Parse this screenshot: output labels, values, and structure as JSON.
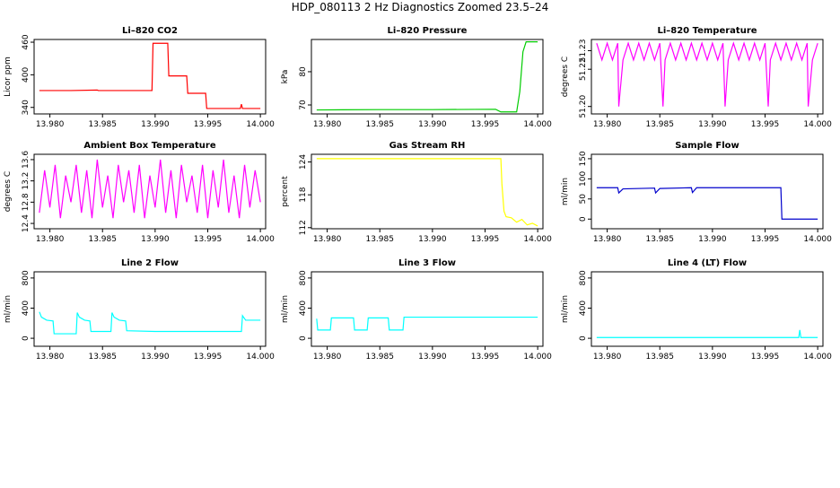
{
  "title": "HDP_080113  2 Hz Diagnostics Zoomed 23.5–24",
  "chart_data": [
    {
      "type": "line",
      "title": "Li–820 CO2",
      "ylabel": "Licor ppm",
      "xlim": [
        13.9785,
        14.0005
      ],
      "ylim": [
        328,
        465
      ],
      "xticks": [
        {
          "value": 13.98,
          "label": "13.980"
        },
        {
          "value": 13.985,
          "label": "13.985"
        },
        {
          "value": 13.99,
          "label": "13.990"
        },
        {
          "value": 13.995,
          "label": "13.995"
        },
        {
          "value": 14.0,
          "label": "14.000"
        }
      ],
      "yticks": [
        340,
        400,
        460
      ],
      "series": [
        {
          "color": "#ff0000",
          "x": [
            13.979,
            13.982,
            13.9845,
            13.9846,
            13.987,
            13.9897,
            13.9898,
            13.9912,
            13.9913,
            13.993,
            13.9931,
            13.9948,
            13.9949,
            13.9981,
            13.9982,
            13.9983,
            14.0
          ],
          "values": [
            371,
            371,
            372,
            371,
            371,
            371,
            458,
            458,
            398,
            398,
            366,
            366,
            338,
            338,
            346,
            338,
            338
          ]
        }
      ]
    },
    {
      "type": "line",
      "title": "Li–820 Pressure",
      "ylabel": "kPa",
      "xlim": [
        13.9785,
        14.0005
      ],
      "ylim": [
        67.3,
        89.7
      ],
      "xticks": [
        {
          "value": 13.98,
          "label": "13.980"
        },
        {
          "value": 13.985,
          "label": "13.985"
        },
        {
          "value": 13.99,
          "label": "13.990"
        },
        {
          "value": 13.995,
          "label": "13.995"
        },
        {
          "value": 14.0,
          "label": "14.000"
        }
      ],
      "yticks": [
        70,
        80
      ],
      "series": [
        {
          "color": "#00cc00",
          "x": [
            13.979,
            13.985,
            13.99,
            13.996,
            13.9965,
            13.998,
            13.9983,
            13.9986,
            13.9989,
            14.0
          ],
          "values": [
            68.5,
            68.6,
            68.6,
            68.7,
            67.9,
            67.9,
            74,
            86,
            89,
            89
          ]
        }
      ]
    },
    {
      "type": "line",
      "title": "Li–820 Temperature",
      "ylabel": "degrees C",
      "xlim": [
        13.9785,
        14.0005
      ],
      "ylim": [
        51.196,
        51.236
      ],
      "xticks": [
        {
          "value": 13.98,
          "label": "13.980"
        },
        {
          "value": 13.985,
          "label": "13.985"
        },
        {
          "value": 13.99,
          "label": "13.990"
        },
        {
          "value": 13.995,
          "label": "13.995"
        },
        {
          "value": 14.0,
          "label": "14.000"
        }
      ],
      "yticks": [
        {
          "value": 51.2,
          "label": "51.20"
        },
        {
          "value": 51.22,
          "label": "51.22"
        },
        {
          "value": 51.23,
          "label": "51.23"
        }
      ],
      "series": [
        {
          "color": "#ff00ff",
          "x": [
            13.979,
            13.9795,
            13.98,
            13.9805,
            13.981,
            13.9811,
            13.9815,
            13.982,
            13.9825,
            13.983,
            13.9835,
            13.984,
            13.9845,
            13.985,
            13.9853,
            13.9855,
            13.986,
            13.9865,
            13.987,
            13.9875,
            13.988,
            13.9885,
            13.989,
            13.9895,
            13.99,
            13.9905,
            13.991,
            13.9912,
            13.9915,
            13.992,
            13.9925,
            13.993,
            13.9935,
            13.994,
            13.9945,
            13.995,
            13.9953,
            13.9955,
            13.996,
            13.9965,
            13.997,
            13.9975,
            13.998,
            13.9985,
            13.999,
            13.9991,
            13.9995,
            14.0
          ],
          "values": [
            51.234,
            51.225,
            51.234,
            51.225,
            51.234,
            51.2,
            51.225,
            51.234,
            51.225,
            51.234,
            51.225,
            51.234,
            51.225,
            51.234,
            51.2,
            51.225,
            51.234,
            51.225,
            51.234,
            51.225,
            51.234,
            51.225,
            51.234,
            51.225,
            51.234,
            51.225,
            51.234,
            51.2,
            51.225,
            51.234,
            51.225,
            51.234,
            51.225,
            51.234,
            51.225,
            51.234,
            51.2,
            51.225,
            51.234,
            51.225,
            51.234,
            51.225,
            51.234,
            51.225,
            51.234,
            51.2,
            51.225,
            51.234
          ]
        }
      ]
    },
    {
      "type": "line",
      "title": "Ambient Box Temperature",
      "ylabel": "degrees C",
      "xlim": [
        13.9785,
        14.0005
      ],
      "ylim": [
        12.3,
        13.7
      ],
      "xticks": [
        {
          "value": 13.98,
          "label": "13.980"
        },
        {
          "value": 13.985,
          "label": "13.985"
        },
        {
          "value": 13.99,
          "label": "13.990"
        },
        {
          "value": 13.995,
          "label": "13.995"
        },
        {
          "value": 14.0,
          "label": "14.000"
        }
      ],
      "yticks": [
        12.4,
        12.8,
        13.2,
        13.6
      ],
      "series": [
        {
          "color": "#ff00ff",
          "x": [
            13.979,
            13.9795,
            13.98,
            13.9805,
            13.981,
            13.9815,
            13.982,
            13.9825,
            13.983,
            13.9835,
            13.984,
            13.9845,
            13.985,
            13.9855,
            13.986,
            13.9865,
            13.987,
            13.9875,
            13.988,
            13.9885,
            13.989,
            13.9895,
            13.99,
            13.9905,
            13.991,
            13.9915,
            13.992,
            13.9925,
            13.993,
            13.9935,
            13.994,
            13.9945,
            13.995,
            13.9955,
            13.996,
            13.9965,
            13.997,
            13.9975,
            13.998,
            13.9985,
            13.999,
            13.9995,
            14.0
          ],
          "values": [
            12.6,
            13.4,
            12.7,
            13.5,
            12.5,
            13.3,
            12.8,
            13.5,
            12.6,
            13.4,
            12.5,
            13.6,
            12.7,
            13.3,
            12.5,
            13.5,
            12.8,
            13.4,
            12.6,
            13.5,
            12.5,
            13.3,
            12.7,
            13.6,
            12.6,
            13.4,
            12.5,
            13.5,
            12.8,
            13.3,
            12.6,
            13.5,
            12.5,
            13.4,
            12.7,
            13.6,
            12.6,
            13.3,
            12.5,
            13.5,
            12.7,
            13.4,
            12.8
          ]
        }
      ]
    },
    {
      "type": "line",
      "title": "Gas Stream RH",
      "ylabel": "percent",
      "xlim": [
        13.9785,
        14.0005
      ],
      "ylim": [
        111.8,
        125.4
      ],
      "xticks": [
        {
          "value": 13.98,
          "label": "13.980"
        },
        {
          "value": 13.985,
          "label": "13.985"
        },
        {
          "value": 13.99,
          "label": "13.990"
        },
        {
          "value": 13.995,
          "label": "13.995"
        },
        {
          "value": 14.0,
          "label": "14.000"
        }
      ],
      "yticks": [
        112,
        118,
        124
      ],
      "series": [
        {
          "color": "#ffff00",
          "x": [
            13.979,
            13.99,
            13.9965,
            13.9966,
            13.9968,
            13.997,
            13.9975,
            13.998,
            13.9985,
            13.999,
            13.9995,
            14.0
          ],
          "values": [
            124.6,
            124.6,
            124.6,
            120,
            115,
            114,
            113.8,
            113,
            113.5,
            112.5,
            112.8,
            112.3
          ]
        }
      ]
    },
    {
      "type": "line",
      "title": "Sample Flow",
      "ylabel": "ml/min",
      "xlim": [
        13.9785,
        14.0005
      ],
      "ylim": [
        -24,
        161
      ],
      "xticks": [
        {
          "value": 13.98,
          "label": "13.980"
        },
        {
          "value": 13.985,
          "label": "13.985"
        },
        {
          "value": 13.99,
          "label": "13.990"
        },
        {
          "value": 13.995,
          "label": "13.995"
        },
        {
          "value": 14.0,
          "label": "14.000"
        }
      ],
      "yticks": [
        0,
        50,
        100,
        150
      ],
      "series": [
        {
          "color": "#0000cc",
          "x": [
            13.979,
            13.981,
            13.9811,
            13.9815,
            13.9845,
            13.9846,
            13.985,
            13.988,
            13.9881,
            13.9885,
            13.9965,
            13.9966,
            14.0
          ],
          "values": [
            78,
            78,
            65,
            75,
            77,
            65,
            76,
            78,
            66,
            78,
            78,
            0,
            0
          ]
        }
      ]
    },
    {
      "type": "line",
      "title": "Line 2 Flow",
      "ylabel": "ml/min",
      "xlim": [
        13.9785,
        14.0005
      ],
      "ylim": [
        -106,
        882
      ],
      "xticks": [
        {
          "value": 13.98,
          "label": "13.980"
        },
        {
          "value": 13.985,
          "label": "13.985"
        },
        {
          "value": 13.99,
          "label": "13.990"
        },
        {
          "value": 13.995,
          "label": "13.995"
        },
        {
          "value": 14.0,
          "label": "14.000"
        }
      ],
      "yticks": [
        0,
        400,
        800
      ],
      "series": [
        {
          "color": "#00ffff",
          "x": [
            13.979,
            13.9792,
            13.9797,
            13.9803,
            13.9804,
            13.9825,
            13.9826,
            13.9828,
            13.9833,
            13.9838,
            13.9839,
            13.9858,
            13.9859,
            13.9861,
            13.9866,
            13.9872,
            13.9873,
            13.99,
            13.9982,
            13.9983,
            13.9986,
            14.0
          ],
          "values": [
            350,
            280,
            240,
            230,
            60,
            60,
            340,
            280,
            240,
            230,
            90,
            90,
            340,
            280,
            240,
            230,
            100,
            90,
            90,
            300,
            240,
            240
          ]
        }
      ]
    },
    {
      "type": "line",
      "title": "Line 3 Flow",
      "ylabel": "ml/min",
      "xlim": [
        13.9785,
        14.0005
      ],
      "ylim": [
        -106,
        882
      ],
      "xticks": [
        {
          "value": 13.98,
          "label": "13.980"
        },
        {
          "value": 13.985,
          "label": "13.985"
        },
        {
          "value": 13.99,
          "label": "13.990"
        },
        {
          "value": 13.995,
          "label": "13.995"
        },
        {
          "value": 14.0,
          "label": "14.000"
        }
      ],
      "yticks": [
        0,
        400,
        800
      ],
      "series": [
        {
          "color": "#00ffff",
          "x": [
            13.979,
            13.9791,
            13.9803,
            13.9804,
            13.9825,
            13.9826,
            13.9838,
            13.9839,
            13.9858,
            13.9859,
            13.9872,
            13.9873,
            14.0
          ],
          "values": [
            260,
            110,
            110,
            270,
            270,
            110,
            110,
            270,
            270,
            110,
            110,
            280,
            280
          ]
        }
      ]
    },
    {
      "type": "line",
      "title": "Line 4 (LT) Flow",
      "ylabel": "ml/min",
      "xlim": [
        13.9785,
        14.0005
      ],
      "ylim": [
        -106,
        882
      ],
      "xticks": [
        {
          "value": 13.98,
          "label": "13.980"
        },
        {
          "value": 13.985,
          "label": "13.985"
        },
        {
          "value": 13.99,
          "label": "13.990"
        },
        {
          "value": 13.995,
          "label": "13.995"
        },
        {
          "value": 14.0,
          "label": "14.000"
        }
      ],
      "yticks": [
        0,
        400,
        800
      ],
      "series": [
        {
          "color": "#00ffff",
          "x": [
            13.979,
            13.9982,
            13.9983,
            13.9984,
            14.0
          ],
          "values": [
            10,
            10,
            110,
            10,
            10
          ]
        }
      ]
    }
  ]
}
